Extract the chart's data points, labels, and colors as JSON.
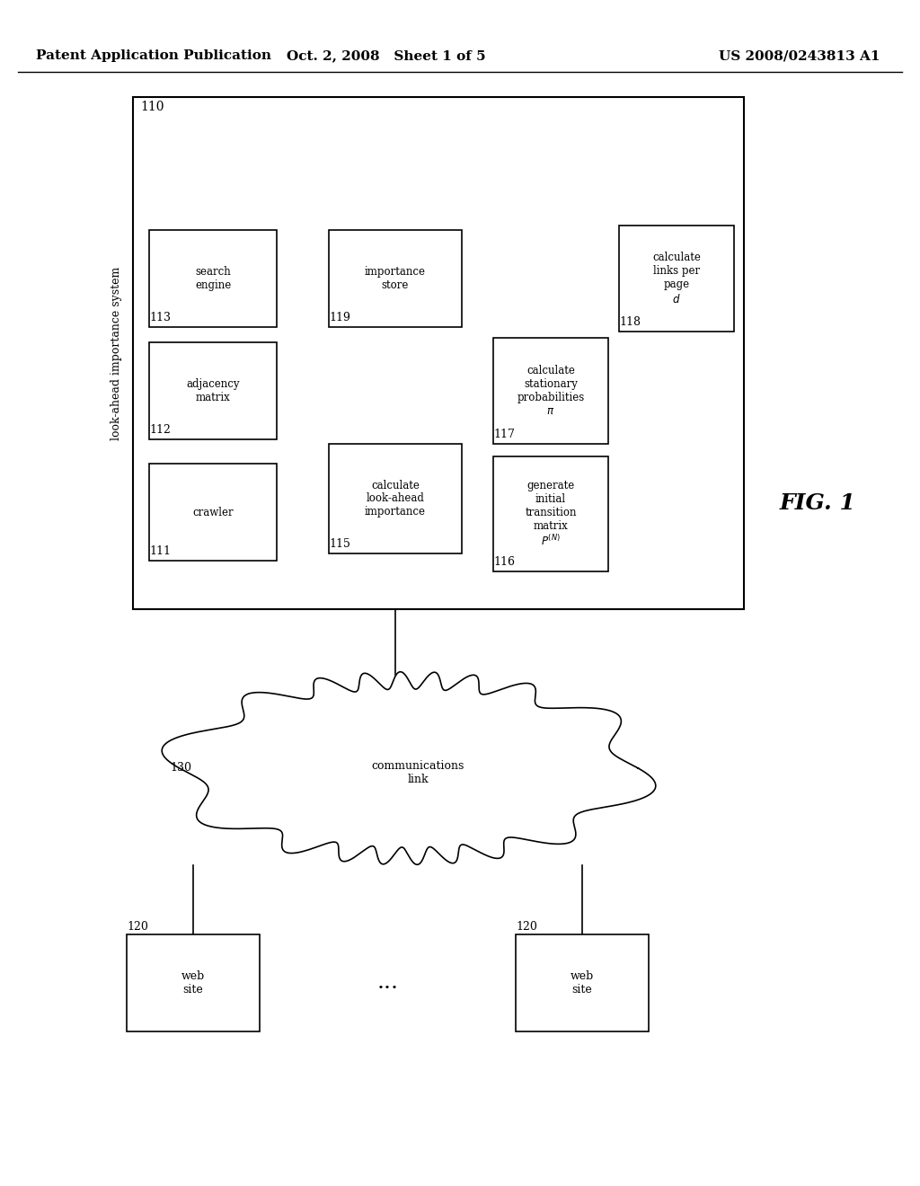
{
  "header_left": "Patent Application Publication",
  "header_mid": "Oct. 2, 2008   Sheet 1 of 5",
  "header_right": "US 2008/0243813 A1",
  "fig_label": "FIG. 1",
  "bg_color": "#ffffff"
}
